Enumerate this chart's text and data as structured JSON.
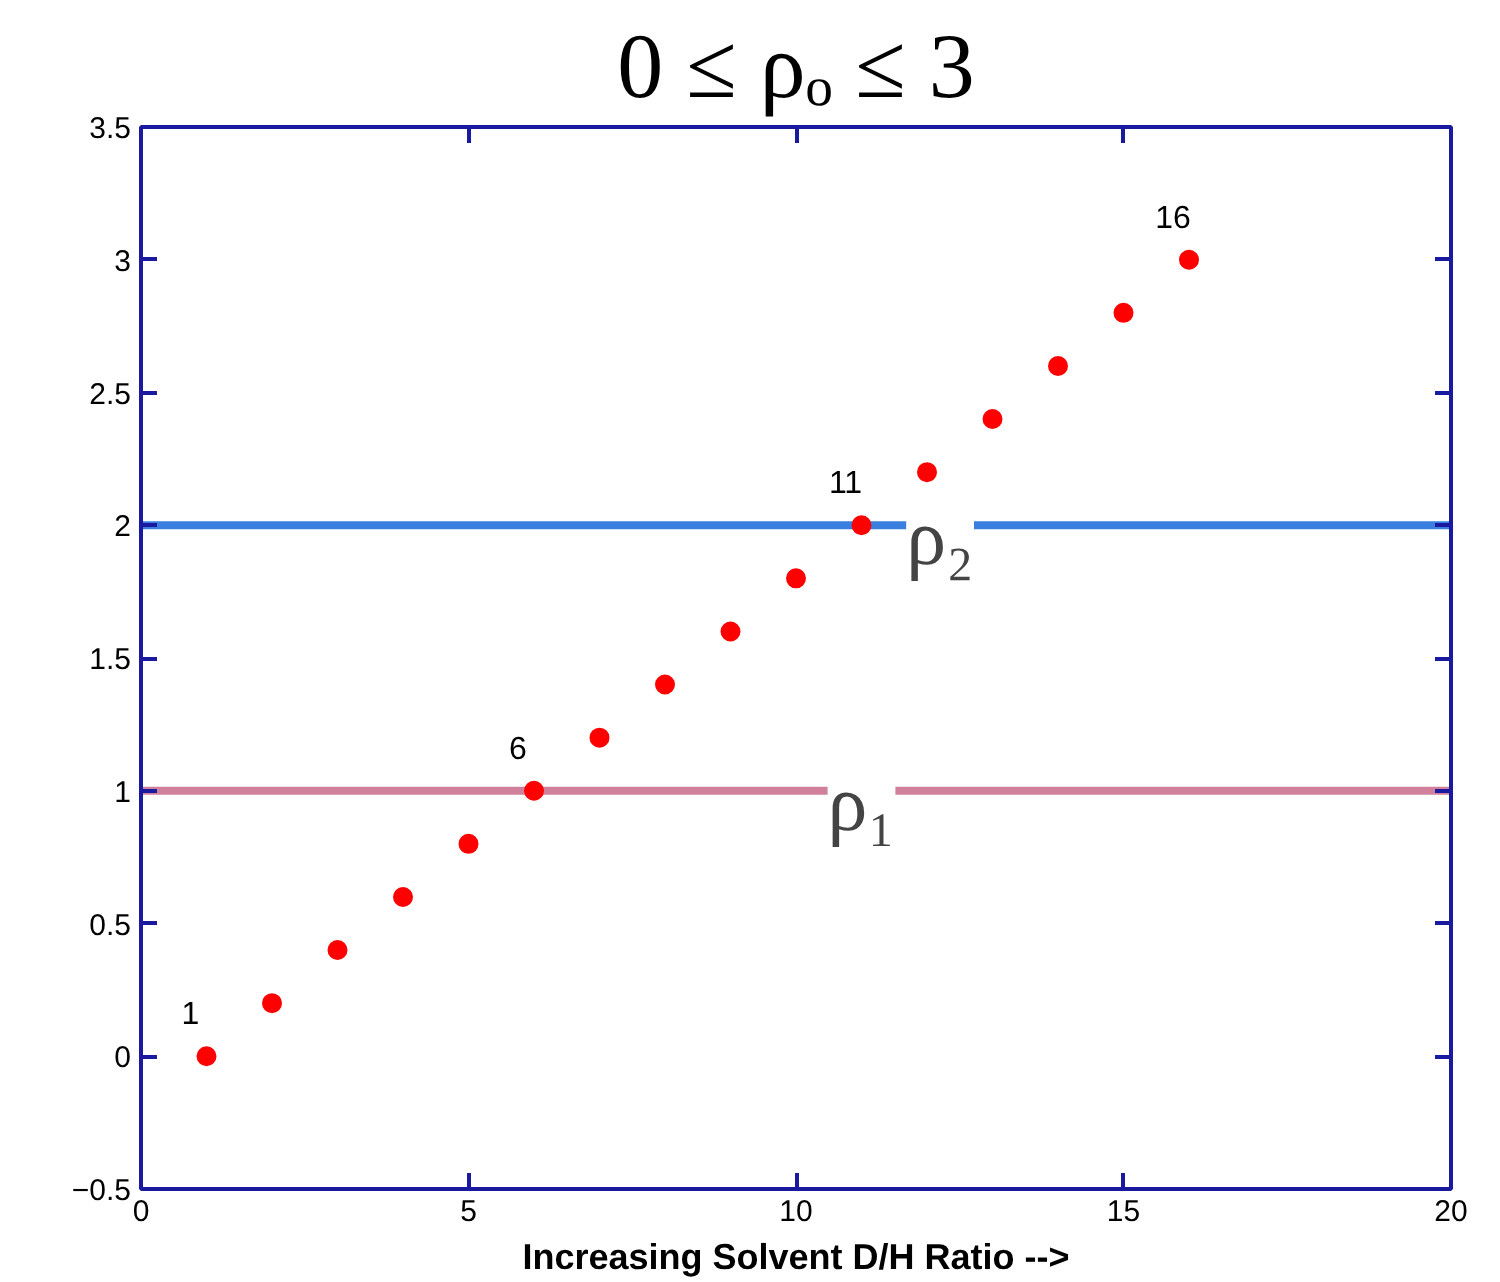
{
  "chart_data": {
    "type": "scatter",
    "title": "0 ≤ ρₒ ≤ 3",
    "xlabel": "Increasing Solvent D/H Ratio -->",
    "x": [
      1,
      2,
      3,
      4,
      5,
      6,
      7,
      8,
      9,
      10,
      11,
      12,
      13,
      14,
      15,
      16
    ],
    "series": [
      {
        "color": "#ff0000",
        "values": [
          0,
          0.2,
          0.4,
          0.6,
          0.8,
          1.0,
          1.2,
          1.4,
          1.6,
          1.8,
          2.0,
          2.2,
          2.4,
          2.6,
          2.8,
          3.0
        ]
      }
    ],
    "marker": "circle",
    "grid": false,
    "xlim": [
      0,
      20
    ],
    "xticks": [
      0,
      5,
      10,
      15,
      20
    ],
    "ylim": [
      -0.5,
      3.5
    ],
    "yticks": [
      -0.5,
      {
        "value": 0,
        "label": "0"
      },
      0.5,
      {
        "value": 1,
        "label": "1"
      },
      1.5,
      {
        "value": 2,
        "label": "2"
      },
      2.5,
      {
        "value": 3,
        "label": "3"
      },
      3.5
    ],
    "ref_lines": [
      {
        "axis": "y",
        "value": 2,
        "label": "ρ₂",
        "color": "#3a7ee0"
      },
      {
        "axis": "y",
        "value": 1,
        "label": "ρ₁",
        "color": "#d0809a"
      }
    ],
    "annotations": [
      {
        "text": "1",
        "x": 1,
        "y": 0
      },
      {
        "text": "6",
        "x": 6,
        "y": 1
      },
      {
        "text": "11",
        "x": 11,
        "y": 2
      },
      {
        "text": "16",
        "x": 16,
        "y": 3
      }
    ]
  }
}
